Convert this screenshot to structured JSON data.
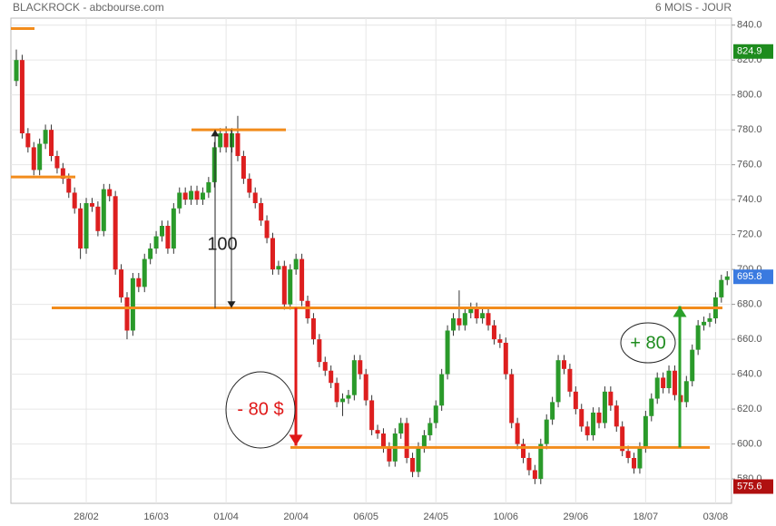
{
  "chart_data": {
    "type": "candlestick",
    "title": "BLACKROCK - abcbourse.com",
    "subtitle": "6 MOIS - JOUR",
    "categories": [
      null,
      null,
      null,
      null,
      null,
      null,
      null,
      null,
      null,
      null,
      null,
      null,
      "28/02",
      null,
      null,
      null,
      null,
      null,
      null,
      null,
      null,
      null,
      null,
      null,
      "16/03",
      null,
      null,
      null,
      null,
      null,
      null,
      null,
      null,
      null,
      null,
      null,
      "01/04",
      null,
      null,
      null,
      null,
      null,
      null,
      null,
      null,
      null,
      null,
      null,
      "20/04",
      null,
      null,
      null,
      null,
      null,
      null,
      null,
      null,
      null,
      null,
      null,
      "06/05",
      null,
      null,
      null,
      null,
      null,
      null,
      null,
      null,
      null,
      null,
      null,
      "24/05",
      null,
      null,
      null,
      null,
      null,
      null,
      null,
      null,
      null,
      null,
      null,
      "10/06",
      null,
      null,
      null,
      null,
      null,
      null,
      null,
      null,
      null,
      null,
      null,
      "29/06",
      null,
      null,
      null,
      null,
      null,
      null,
      null,
      null,
      null,
      null,
      null,
      "18/07",
      null,
      null,
      null,
      null,
      null,
      null,
      null,
      null,
      null,
      null,
      null,
      "03/08",
      null,
      null
    ],
    "open": [
      808,
      820,
      778,
      770,
      757,
      772,
      780,
      765,
      758,
      752,
      744,
      735,
      712,
      738,
      736,
      722,
      746,
      742,
      700,
      684,
      665,
      695,
      690,
      706,
      712,
      719,
      725,
      712,
      735,
      744,
      740,
      745,
      740,
      744,
      750,
      770,
      778,
      770,
      778,
      765,
      752,
      744,
      738,
      728,
      718,
      700,
      702,
      680,
      700,
      706,
      682,
      672,
      660,
      647,
      642,
      635,
      624,
      626,
      628,
      648,
      640,
      625,
      608,
      606,
      598,
      590,
      606,
      612,
      592,
      584,
      598,
      605,
      612,
      622,
      640,
      665,
      672,
      668,
      675,
      678,
      672,
      675,
      668,
      660,
      658,
      640,
      612,
      600,
      592,
      585,
      580,
      600,
      614,
      624,
      648,
      643,
      630,
      620,
      610,
      605,
      618,
      612,
      630,
      622,
      610,
      596,
      592,
      586,
      598,
      616,
      626,
      638,
      632,
      642,
      628,
      624,
      636,
      654,
      668,
      670,
      672,
      684,
      694
    ],
    "high": [
      826,
      823,
      781,
      773,
      775,
      783,
      783,
      768,
      761,
      755,
      747,
      738,
      741,
      741,
      739,
      749,
      749,
      745,
      703,
      687,
      698,
      698,
      709,
      715,
      722,
      728,
      728,
      738,
      747,
      747,
      748,
      748,
      747,
      753,
      773,
      781,
      782,
      781,
      788,
      768,
      755,
      747,
      741,
      731,
      721,
      705,
      705,
      703,
      709,
      709,
      685,
      675,
      663,
      650,
      645,
      638,
      629,
      631,
      651,
      651,
      643,
      628,
      611,
      609,
      601,
      609,
      615,
      615,
      595,
      601,
      608,
      615,
      625,
      643,
      668,
      675,
      688,
      678,
      681,
      681,
      678,
      678,
      671,
      663,
      661,
      643,
      615,
      603,
      595,
      588,
      603,
      617,
      627,
      651,
      651,
      646,
      633,
      623,
      613,
      621,
      621,
      633,
      633,
      625,
      613,
      599,
      595,
      601,
      619,
      629,
      641,
      641,
      645,
      645,
      631,
      639,
      657,
      671,
      673,
      675,
      687,
      697,
      699
    ],
    "low": [
      805,
      775,
      767,
      754,
      754,
      769,
      762,
      755,
      749,
      741,
      732,
      706,
      709,
      733,
      719,
      719,
      739,
      697,
      681,
      660,
      662,
      687,
      687,
      703,
      709,
      716,
      709,
      709,
      732,
      737,
      737,
      737,
      737,
      741,
      747,
      767,
      767,
      767,
      762,
      749,
      741,
      735,
      725,
      715,
      697,
      697,
      677,
      677,
      697,
      679,
      669,
      657,
      644,
      639,
      632,
      621,
      616,
      623,
      625,
      637,
      622,
      605,
      603,
      595,
      587,
      587,
      603,
      589,
      581,
      581,
      595,
      602,
      609,
      619,
      637,
      662,
      665,
      665,
      672,
      669,
      669,
      665,
      657,
      655,
      637,
      609,
      597,
      589,
      582,
      577,
      577,
      597,
      611,
      621,
      640,
      627,
      617,
      607,
      602,
      602,
      609,
      609,
      619,
      607,
      593,
      589,
      583,
      583,
      595,
      613,
      623,
      629,
      629,
      625,
      621,
      621,
      633,
      651,
      665,
      667,
      669,
      681,
      691
    ],
    "close": [
      820,
      778,
      770,
      757,
      772,
      780,
      765,
      758,
      752,
      744,
      735,
      712,
      738,
      736,
      722,
      746,
      742,
      700,
      684,
      665,
      695,
      690,
      706,
      712,
      719,
      725,
      712,
      735,
      744,
      740,
      745,
      740,
      744,
      750,
      770,
      778,
      770,
      778,
      765,
      752,
      744,
      738,
      728,
      718,
      700,
      702,
      680,
      700,
      706,
      682,
      672,
      660,
      647,
      642,
      635,
      624,
      626,
      628,
      648,
      640,
      625,
      608,
      606,
      598,
      590,
      606,
      612,
      592,
      584,
      598,
      605,
      612,
      622,
      640,
      665,
      672,
      668,
      675,
      678,
      672,
      675,
      668,
      660,
      658,
      640,
      612,
      600,
      592,
      585,
      580,
      600,
      614,
      624,
      648,
      643,
      630,
      620,
      610,
      605,
      618,
      612,
      630,
      622,
      610,
      596,
      592,
      586,
      598,
      616,
      626,
      638,
      632,
      642,
      628,
      624,
      636,
      654,
      668,
      670,
      672,
      684,
      694,
      696
    ],
    "up_color": "#2a9a2a",
    "down_color": "#dd1f1f",
    "ylim": [
      566,
      844
    ],
    "yticks": [
      {
        "value": 580,
        "label": "580.0"
      },
      {
        "value": 600,
        "label": "600.0"
      },
      {
        "value": 620,
        "label": "620.0"
      },
      {
        "value": 640,
        "label": "640.0"
      },
      {
        "value": 660,
        "label": "660.0"
      },
      {
        "value": 680,
        "label": "680.0"
      },
      {
        "value": 700,
        "label": "700.0"
      },
      {
        "value": 720,
        "label": "720.0"
      },
      {
        "value": 740,
        "label": "740.0"
      },
      {
        "value": 760,
        "label": "760.0"
      },
      {
        "value": 780,
        "label": "780.0"
      },
      {
        "value": 800,
        "label": "800.0"
      },
      {
        "value": 820,
        "label": "820.0"
      },
      {
        "value": 840,
        "label": "840.0"
      }
    ],
    "grid": true,
    "price_tags": [
      {
        "value": 824.9,
        "color": "#1e8c1e"
      },
      {
        "value": 695.8,
        "color": "#3a7ae0"
      },
      {
        "value": 575.6,
        "color": "#b01010"
      }
    ],
    "levels": [
      838,
      753,
      780,
      678,
      598
    ],
    "level_color": "#f28c1c",
    "annotations": [
      "100",
      "- 80 $",
      "+ 80"
    ]
  }
}
